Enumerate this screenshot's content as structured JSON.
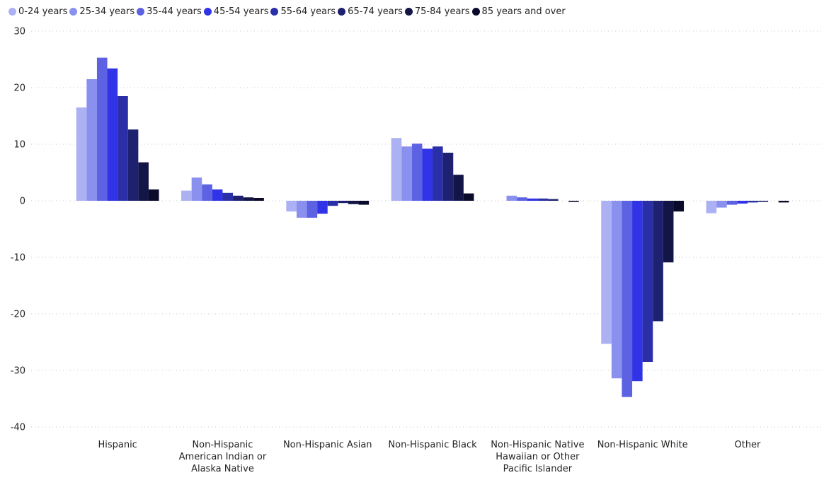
{
  "chart_data": {
    "type": "bar",
    "categories": [
      "Hispanic",
      "Non-Hispanic American Indian or Alaska Native",
      "Non-Hispanic Asian",
      "Non-Hispanic Black",
      "Non-Hispanic Native Hawaiian or Other Pacific Islander",
      "Non-Hispanic White",
      "Other"
    ],
    "category_label_lines": [
      [
        "Hispanic"
      ],
      [
        "Non-Hispanic",
        "American Indian or",
        "Alaska Native"
      ],
      [
        "Non-Hispanic Asian"
      ],
      [
        "Non-Hispanic Black"
      ],
      [
        "Non-Hispanic Native",
        "Hawaiian or Other",
        "Pacific Islander"
      ],
      [
        "Non-Hispanic White"
      ],
      [
        "Other"
      ]
    ],
    "series": [
      {
        "name": "0-24 years",
        "color": "#ACB1F3",
        "values": [
          16.5,
          1.8,
          -1.9,
          11.1,
          0.0,
          -25.3,
          -2.2
        ]
      },
      {
        "name": "25-34 years",
        "color": "#8A90EE",
        "values": [
          21.5,
          4.1,
          -3.0,
          9.6,
          0.9,
          -31.4,
          -1.2
        ]
      },
      {
        "name": "35-44 years",
        "color": "#5D62E3",
        "values": [
          25.3,
          2.9,
          -3.0,
          10.1,
          0.6,
          -34.7,
          -0.7
        ]
      },
      {
        "name": "45-54 years",
        "color": "#3133E6",
        "values": [
          23.4,
          2.0,
          -2.3,
          9.2,
          0.4,
          -31.9,
          -0.5
        ]
      },
      {
        "name": "55-64 years",
        "color": "#2A2FA8",
        "values": [
          18.5,
          1.4,
          -0.9,
          9.6,
          0.4,
          -28.5,
          -0.3
        ]
      },
      {
        "name": "65-74 years",
        "color": "#1E216F",
        "values": [
          12.6,
          0.9,
          -0.4,
          8.5,
          0.3,
          -21.3,
          -0.2
        ]
      },
      {
        "name": "75-84 years",
        "color": "#131546",
        "values": [
          6.8,
          0.6,
          -0.6,
          4.6,
          0.0,
          -10.9,
          0.0
        ]
      },
      {
        "name": "85 years and over",
        "color": "#0A0B2A",
        "values": [
          2.0,
          0.5,
          -0.7,
          1.3,
          -0.2,
          -1.9,
          -0.3
        ]
      }
    ],
    "yticks": [
      30,
      20,
      10,
      0,
      -10,
      -20,
      -30,
      -40
    ],
    "ylim": [
      -40,
      30
    ],
    "grid": true,
    "legend_position": "top-left",
    "title": "",
    "xlabel": "",
    "ylabel": ""
  }
}
